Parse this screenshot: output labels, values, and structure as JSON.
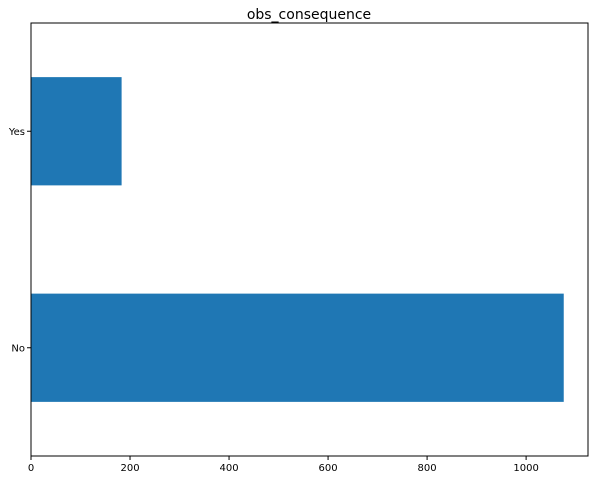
{
  "chart_data": {
    "type": "bar",
    "orientation": "horizontal",
    "title": "obs_consequence",
    "xlabel": "",
    "ylabel": "",
    "categories": [
      "No",
      "Yes"
    ],
    "values": [
      1076,
      183
    ],
    "xlim": [
      0,
      1125
    ],
    "xticks": [
      0,
      200,
      400,
      600,
      800,
      1000
    ],
    "grid": false,
    "bar_color": "#1f77b4"
  }
}
